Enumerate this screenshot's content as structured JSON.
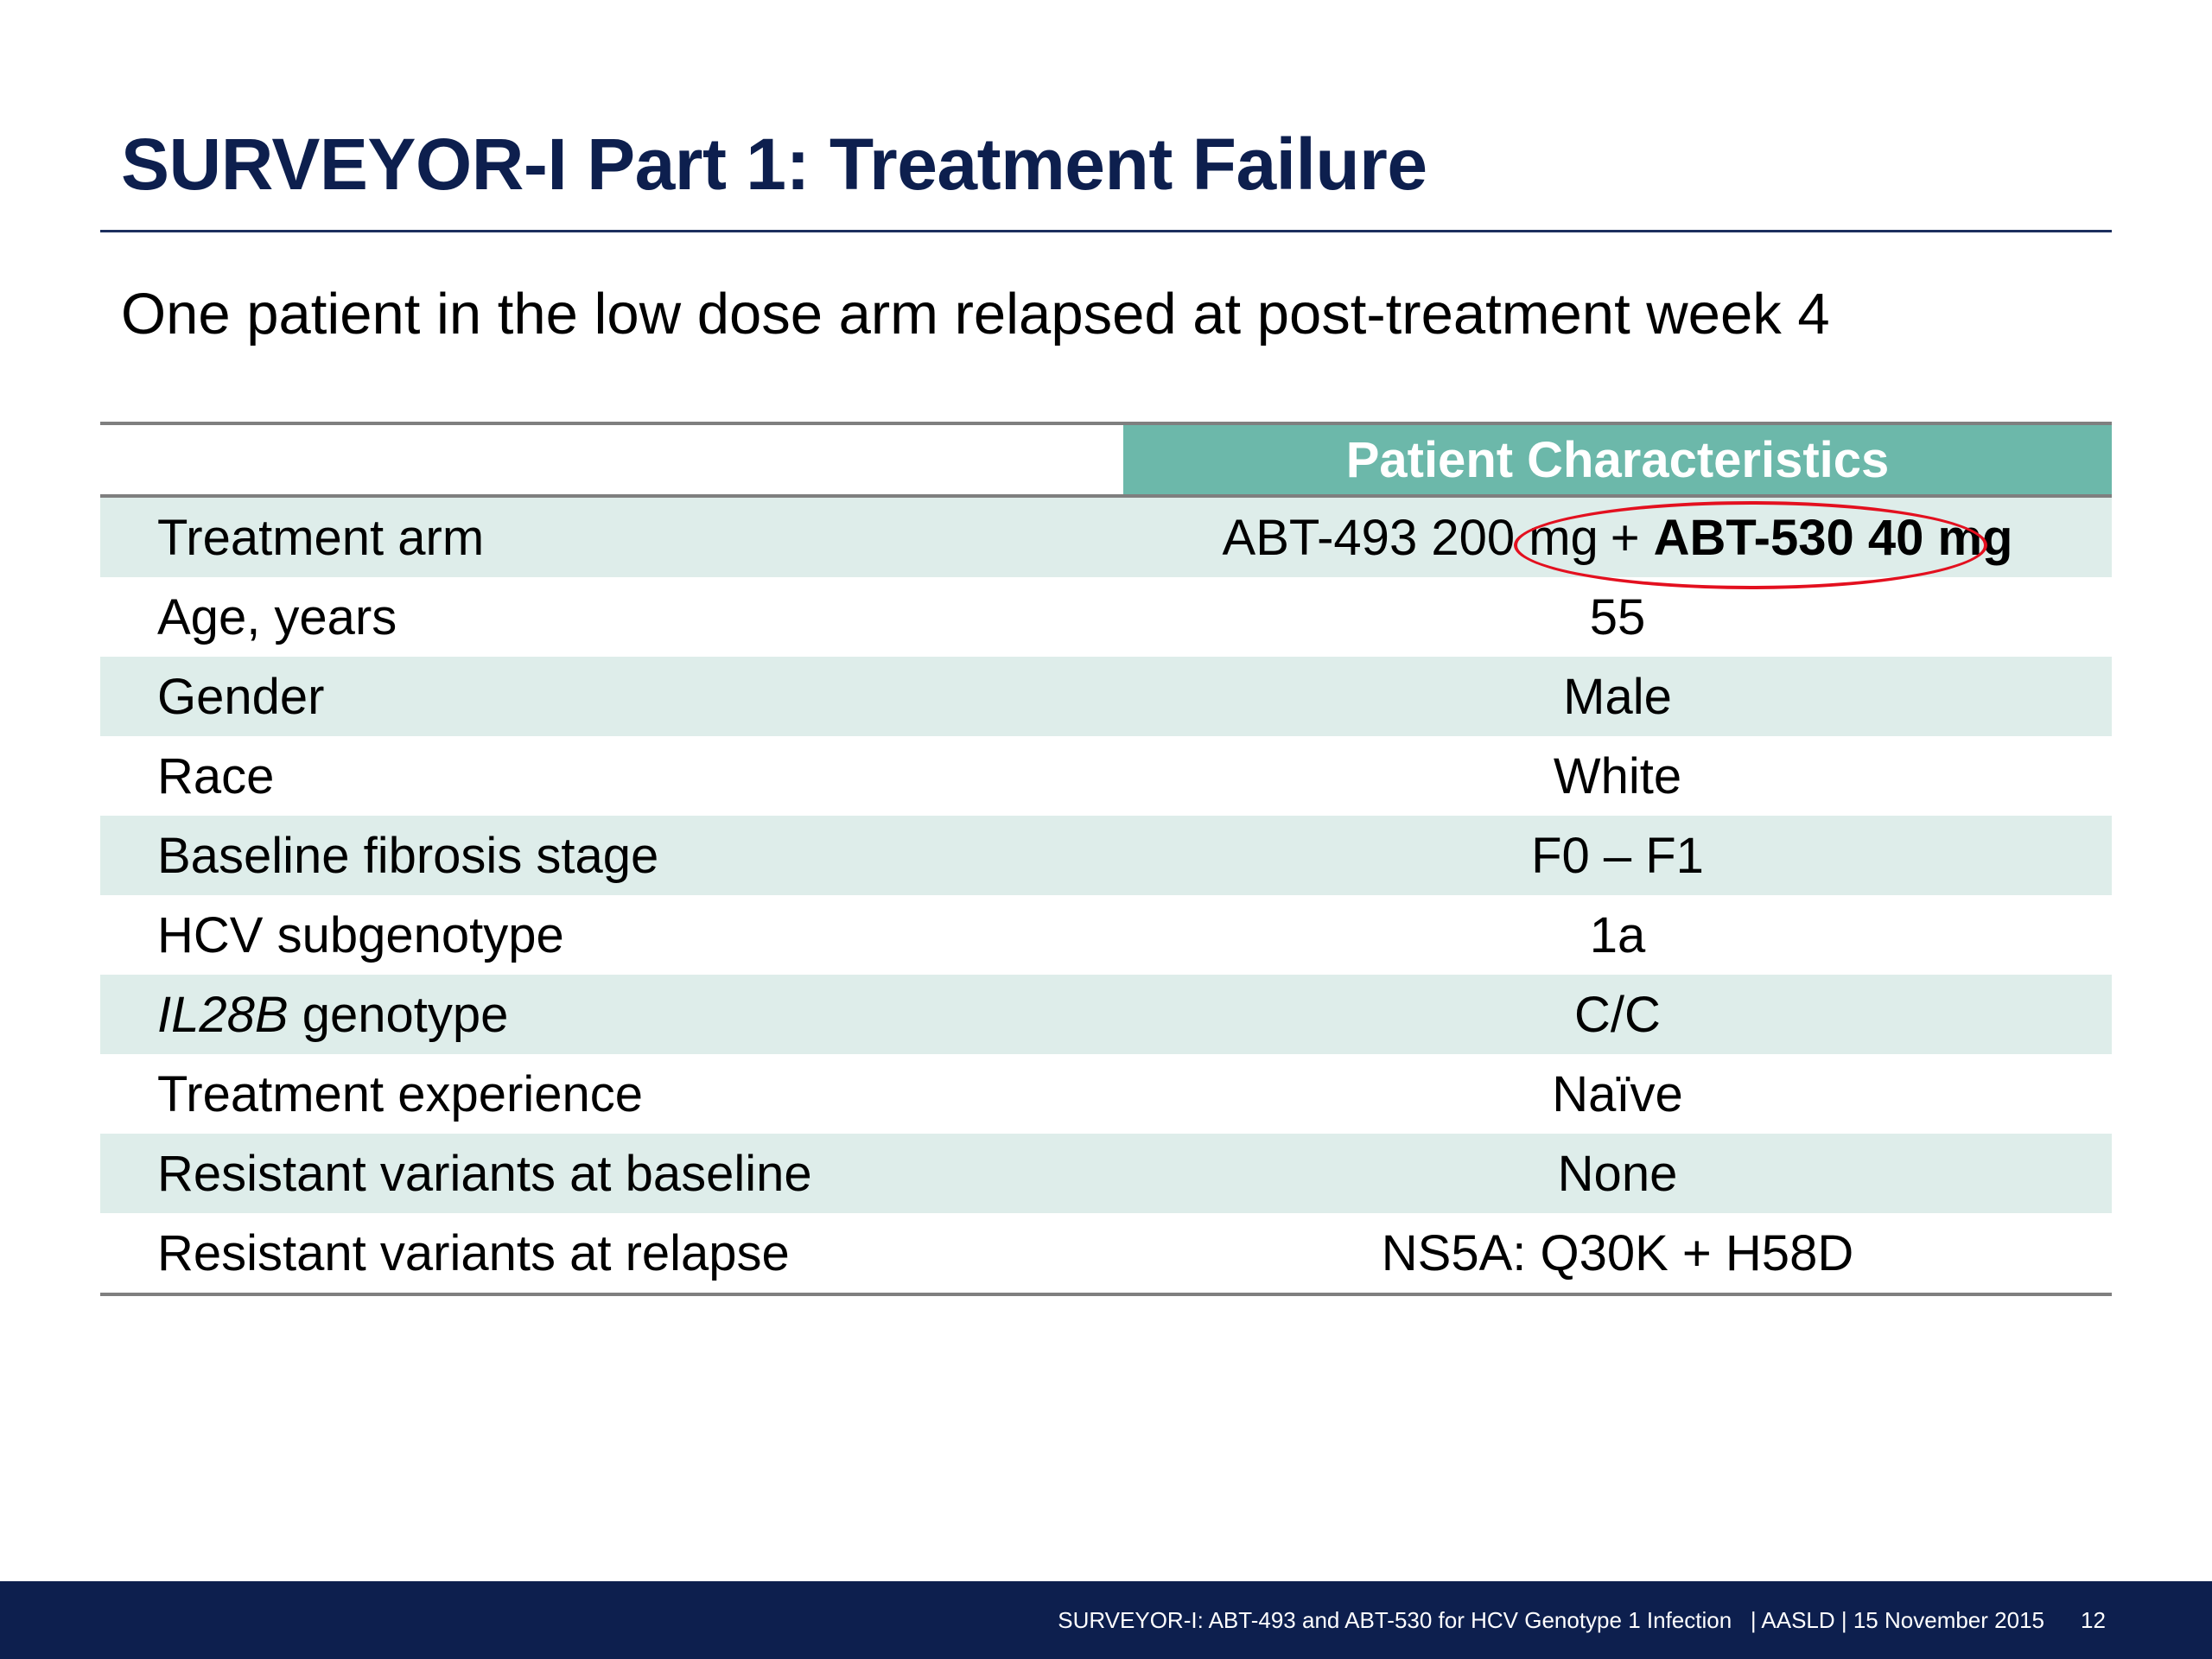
{
  "slide": {
    "title": "SURVEYOR-I Part 1: Treatment Failure",
    "subtitle": "One patient in the low dose arm relapsed at post-treatment week 4"
  },
  "table": {
    "header": "Patient Characteristics",
    "rows": [
      {
        "label": "Treatment arm",
        "value_plain": "ABT-493 200 mg",
        "value_plus": "+",
        "value_bold": "ABT-530 40 mg",
        "highlighted": "ABT-530 40 mg"
      },
      {
        "label": "Age, years",
        "value": "55"
      },
      {
        "label": "Gender",
        "value": "Male"
      },
      {
        "label": "Race",
        "value": "White"
      },
      {
        "label": "Baseline fibrosis stage",
        "value": "F0 – F1"
      },
      {
        "label": "HCV subgenotype",
        "value": "1a"
      },
      {
        "label_italic": "IL28B",
        "label_rest": " genotype",
        "value": "C/C"
      },
      {
        "label": "Treatment experience",
        "value": "Naïve"
      },
      {
        "label": "Resistant variants at baseline",
        "value": "None"
      },
      {
        "label": "Resistant variants at relapse",
        "value": "NS5A: Q30K + H58D"
      }
    ]
  },
  "footer": {
    "citation": "SURVEYOR-I: ABT-493 and ABT-530 for HCV Genotype 1 Infection   | AASLD | 15 November 2015",
    "page_number": "12"
  },
  "colors": {
    "title": "#0d1f4e",
    "header_fill": "#6cb8aa",
    "row_shade": "#deedea",
    "footer_bar": "#0d1f4e",
    "highlight_ellipse": "#e3101f"
  }
}
